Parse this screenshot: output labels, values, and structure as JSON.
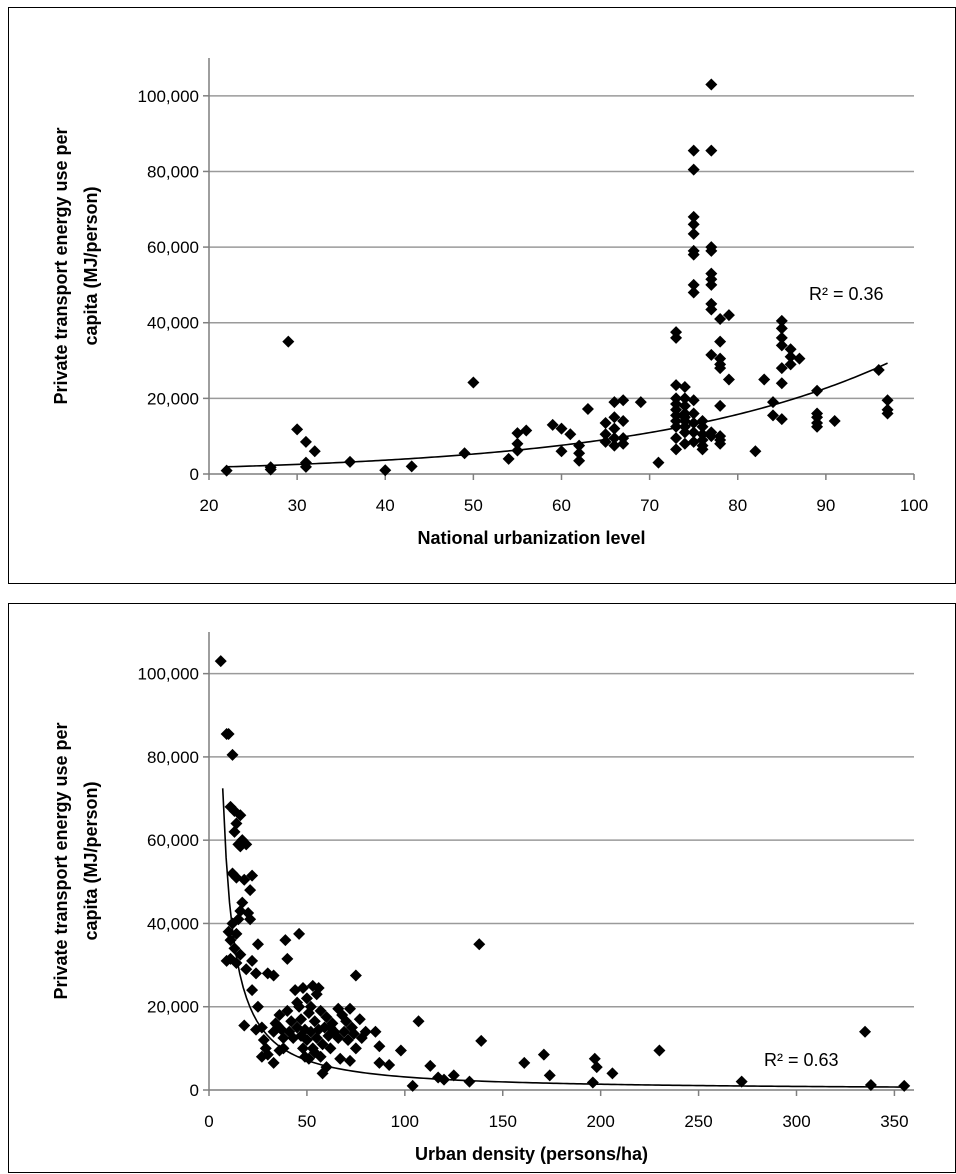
{
  "chart_data": [
    {
      "type": "scatter",
      "title": "",
      "xlabel": "National urbanization level",
      "ylabel": "Private transport energy use per capita (MJ/person)",
      "ylabel_lines": [
        "Private transport energy use per",
        "capita (MJ/person)"
      ],
      "xlim": [
        20,
        100
      ],
      "ylim": [
        0,
        110000
      ],
      "xticks": [
        20,
        30,
        40,
        50,
        60,
        70,
        80,
        90,
        100
      ],
      "yticks": [
        0,
        20000,
        40000,
        60000,
        80000,
        100000
      ],
      "xtick_labels": [
        "20",
        "30",
        "40",
        "50",
        "60",
        "70",
        "80",
        "90",
        "100"
      ],
      "ytick_labels": [
        "0",
        "20,000",
        "40,000",
        "60,000",
        "80,000",
        "100,000"
      ],
      "grid": "horizontal",
      "annotation": "R² = 0.36",
      "trendline": {
        "type": "exponential",
        "a": 850,
        "b": 0.0365
      },
      "points": [
        [
          22,
          900
        ],
        [
          27,
          1200
        ],
        [
          27,
          1800
        ],
        [
          29,
          35000
        ],
        [
          30,
          11800
        ],
        [
          31,
          8500
        ],
        [
          31,
          3000
        ],
        [
          31,
          1900
        ],
        [
          32,
          6000
        ],
        [
          36,
          3200
        ],
        [
          40,
          1000
        ],
        [
          43,
          2000
        ],
        [
          49,
          5500
        ],
        [
          50,
          24200
        ],
        [
          54,
          4000
        ],
        [
          55,
          10800
        ],
        [
          55,
          8000
        ],
        [
          55,
          6200
        ],
        [
          56,
          11500
        ],
        [
          59,
          13000
        ],
        [
          60,
          12000
        ],
        [
          60,
          6000
        ],
        [
          61,
          10500
        ],
        [
          62,
          7500
        ],
        [
          62,
          5500
        ],
        [
          62,
          3500
        ],
        [
          63,
          17200
        ],
        [
          65,
          13500
        ],
        [
          65,
          10500
        ],
        [
          65,
          8500
        ],
        [
          66,
          19000
        ],
        [
          66,
          15000
        ],
        [
          66,
          12000
        ],
        [
          66,
          9500
        ],
        [
          66,
          7500
        ],
        [
          67,
          19500
        ],
        [
          67,
          14000
        ],
        [
          67,
          9500
        ],
        [
          67,
          8000
        ],
        [
          69,
          19000
        ],
        [
          71,
          3000
        ],
        [
          73,
          37500
        ],
        [
          73,
          36000
        ],
        [
          73,
          23500
        ],
        [
          73,
          20000
        ],
        [
          73,
          18500
        ],
        [
          73,
          17000
        ],
        [
          73,
          15500
        ],
        [
          73,
          14000
        ],
        [
          73,
          12500
        ],
        [
          73,
          9500
        ],
        [
          73,
          6500
        ],
        [
          74,
          23000
        ],
        [
          74,
          20000
        ],
        [
          74,
          18000
        ],
        [
          74,
          16000
        ],
        [
          74,
          15000
        ],
        [
          74,
          14000
        ],
        [
          74,
          12500
        ],
        [
          74,
          11000
        ],
        [
          74,
          8000
        ],
        [
          75,
          85500
        ],
        [
          75,
          80500
        ],
        [
          75,
          68000
        ],
        [
          75,
          66000
        ],
        [
          75,
          63500
        ],
        [
          75,
          59000
        ],
        [
          75,
          58000
        ],
        [
          75,
          50000
        ],
        [
          75,
          48000
        ],
        [
          75,
          19500
        ],
        [
          75,
          16000
        ],
        [
          75,
          13500
        ],
        [
          75,
          11000
        ],
        [
          75,
          8500
        ],
        [
          76,
          14000
        ],
        [
          76,
          12500
        ],
        [
          76,
          10500
        ],
        [
          76,
          9000
        ],
        [
          76,
          7500
        ],
        [
          76,
          6500
        ],
        [
          77,
          103000
        ],
        [
          77,
          85500
        ],
        [
          77,
          60000
        ],
        [
          77,
          59000
        ],
        [
          77,
          53000
        ],
        [
          77,
          51500
        ],
        [
          77,
          50000
        ],
        [
          77,
          45000
        ],
        [
          77,
          43500
        ],
        [
          77,
          31500
        ],
        [
          77,
          11000
        ],
        [
          77,
          10000
        ],
        [
          78,
          41000
        ],
        [
          78,
          35000
        ],
        [
          78,
          30500
        ],
        [
          78,
          29000
        ],
        [
          78,
          28000
        ],
        [
          78,
          18000
        ],
        [
          78,
          10000
        ],
        [
          78,
          9000
        ],
        [
          78,
          8000
        ],
        [
          79,
          42000
        ],
        [
          79,
          25000
        ],
        [
          82,
          6000
        ],
        [
          83,
          25000
        ],
        [
          84,
          19000
        ],
        [
          84,
          15500
        ],
        [
          85,
          40500
        ],
        [
          85,
          38500
        ],
        [
          85,
          36000
        ],
        [
          85,
          34000
        ],
        [
          85,
          28000
        ],
        [
          85,
          24000
        ],
        [
          85,
          14500
        ],
        [
          86,
          33000
        ],
        [
          86,
          31000
        ],
        [
          86,
          29000
        ],
        [
          87,
          30500
        ],
        [
          89,
          22000
        ],
        [
          89,
          16000
        ],
        [
          89,
          15000
        ],
        [
          89,
          13500
        ],
        [
          89,
          12500
        ],
        [
          91,
          14000
        ],
        [
          96,
          27500
        ],
        [
          97,
          19500
        ],
        [
          97,
          17000
        ],
        [
          97,
          16000
        ]
      ]
    },
    {
      "type": "scatter",
      "title": "",
      "xlabel": "Urban density (persons/ha)",
      "ylabel": "Private transport energy use per capita (MJ/person)",
      "ylabel_lines": [
        "Private transport energy use per",
        "capita (MJ/person)"
      ],
      "xlim": [
        0,
        360
      ],
      "ylim": [
        0,
        110000
      ],
      "xticks": [
        0,
        50,
        100,
        150,
        200,
        250,
        300,
        350
      ],
      "yticks": [
        0,
        20000,
        40000,
        60000,
        80000,
        100000
      ],
      "xtick_labels": [
        "0",
        "50",
        "100",
        "150",
        "200",
        "250",
        "300",
        "350"
      ],
      "ytick_labels": [
        "0",
        "20,000",
        "40,000",
        "60,000",
        "80,000",
        "100,000"
      ],
      "grid": "horizontal",
      "annotation": "R² = 0.63",
      "trendline": {
        "type": "power",
        "a": 720000,
        "b": -1.18,
        "xmin": 7
      },
      "points": [
        [
          6,
          103000
        ],
        [
          9,
          85500
        ],
        [
          10,
          85500
        ],
        [
          12,
          80500
        ],
        [
          11,
          68000
        ],
        [
          13,
          67000
        ],
        [
          14,
          64000
        ],
        [
          16,
          66000
        ],
        [
          13,
          62000
        ],
        [
          15,
          59000
        ],
        [
          17,
          60000
        ],
        [
          19,
          59000
        ],
        [
          16,
          58500
        ],
        [
          12,
          52000
        ],
        [
          14,
          51000
        ],
        [
          22,
          51500
        ],
        [
          18,
          50500
        ],
        [
          21,
          48000
        ],
        [
          17,
          45000
        ],
        [
          16,
          43000
        ],
        [
          15,
          41000
        ],
        [
          20,
          42500
        ],
        [
          21,
          41000
        ],
        [
          12,
          40000
        ],
        [
          10,
          38000
        ],
        [
          14,
          37500
        ],
        [
          11,
          36000
        ],
        [
          13,
          34000
        ],
        [
          16,
          32500
        ],
        [
          9,
          31000
        ],
        [
          11,
          31500
        ],
        [
          14,
          30500
        ],
        [
          25,
          35000
        ],
        [
          19,
          29000
        ],
        [
          22,
          31000
        ],
        [
          24,
          28000
        ],
        [
          18,
          15500
        ],
        [
          22,
          24000
        ],
        [
          25,
          20000
        ],
        [
          27,
          15000
        ],
        [
          24,
          14500
        ],
        [
          28,
          12000
        ],
        [
          29,
          10000
        ],
        [
          30,
          8500
        ],
        [
          27,
          8000
        ],
        [
          30,
          28000
        ],
        [
          33,
          27500
        ],
        [
          35,
          15500
        ],
        [
          33,
          6500
        ],
        [
          33,
          14000
        ],
        [
          34,
          16000
        ],
        [
          36,
          18000
        ],
        [
          37,
          14500
        ],
        [
          38,
          12500
        ],
        [
          38,
          10000
        ],
        [
          36,
          9500
        ],
        [
          39,
          36000
        ],
        [
          40,
          31500
        ],
        [
          40,
          19000
        ],
        [
          41,
          14000
        ],
        [
          42,
          16500
        ],
        [
          43,
          12500
        ],
        [
          44,
          24000
        ],
        [
          45,
          21000
        ],
        [
          45,
          15000
        ],
        [
          46,
          37500
        ],
        [
          46,
          20000
        ],
        [
          47,
          17000
        ],
        [
          47,
          13000
        ],
        [
          48,
          10000
        ],
        [
          48,
          24500
        ],
        [
          49,
          14500
        ],
        [
          49,
          8000
        ],
        [
          50,
          22000
        ],
        [
          50,
          12000
        ],
        [
          51,
          18500
        ],
        [
          51,
          7500
        ],
        [
          52,
          20000
        ],
        [
          52,
          14000
        ],
        [
          53,
          25000
        ],
        [
          53,
          10000
        ],
        [
          54,
          16500
        ],
        [
          54,
          9000
        ],
        [
          55,
          23000
        ],
        [
          55,
          12500
        ],
        [
          56,
          24500
        ],
        [
          56,
          14500
        ],
        [
          57,
          19000
        ],
        [
          57,
          8000
        ],
        [
          58,
          4000
        ],
        [
          58,
          11000
        ],
        [
          59,
          15000
        ],
        [
          60,
          5500
        ],
        [
          60,
          17500
        ],
        [
          61,
          13000
        ],
        [
          62,
          10000
        ],
        [
          62,
          15000
        ],
        [
          63,
          16000
        ],
        [
          64,
          14000
        ],
        [
          66,
          19500
        ],
        [
          66,
          12500
        ],
        [
          67,
          7500
        ],
        [
          68,
          18000
        ],
        [
          69,
          14000
        ],
        [
          70,
          16500
        ],
        [
          71,
          12000
        ],
        [
          72,
          7000
        ],
        [
          72,
          19500
        ],
        [
          73,
          15000
        ],
        [
          74,
          13500
        ],
        [
          75,
          27500
        ],
        [
          75,
          10000
        ],
        [
          77,
          17000
        ],
        [
          78,
          12500
        ],
        [
          80,
          14000
        ],
        [
          85,
          14000
        ],
        [
          87,
          10500
        ],
        [
          87,
          6500
        ],
        [
          92,
          6000
        ],
        [
          98,
          9500
        ],
        [
          104,
          1000
        ],
        [
          107,
          16500
        ],
        [
          113,
          5800
        ],
        [
          117,
          3000
        ],
        [
          120,
          2500
        ],
        [
          125,
          3500
        ],
        [
          133,
          2000
        ],
        [
          138,
          35000
        ],
        [
          139,
          11800
        ],
        [
          161,
          6500
        ],
        [
          171,
          8500
        ],
        [
          174,
          3500
        ],
        [
          196,
          1800
        ],
        [
          197,
          7500
        ],
        [
          198,
          5500
        ],
        [
          206,
          4000
        ],
        [
          230,
          9500
        ],
        [
          272,
          2000
        ],
        [
          335,
          14000
        ],
        [
          338,
          1200
        ],
        [
          355,
          1000
        ]
      ]
    }
  ]
}
